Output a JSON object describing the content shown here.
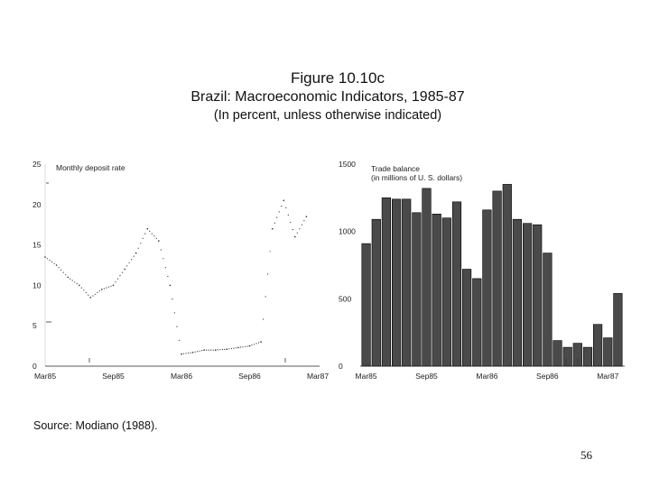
{
  "figure": {
    "title": "Figure 10.10c",
    "subtitle": "Brazil: Macroeconomic Indicators, 1985-87",
    "units_note": "(In percent, unless otherwise indicated)",
    "source": "Source: Modiano (1988).",
    "page_number": "56"
  },
  "colors": {
    "bar_fill": "#4a4a4a",
    "bar_stroke": "#000000",
    "line": "#333333"
  },
  "chart_data": [
    {
      "type": "line",
      "title": "Monthly deposit rate",
      "x_tick_labels": [
        "Mar85",
        "Sep85",
        "Mar86",
        "Sep86",
        "Mar87"
      ],
      "y_tick_labels": [
        "0",
        "5",
        "10",
        "15",
        "20",
        "25"
      ],
      "ylim": [
        0,
        25
      ],
      "months": 25,
      "values": [
        13.5,
        12.5,
        11,
        10,
        8.5,
        9.5,
        10,
        12,
        14,
        17,
        15.5,
        10,
        1.5,
        1.7,
        2,
        2,
        2.1,
        2.3,
        2.5,
        3,
        17,
        20.5,
        16,
        18.5
      ]
    },
    {
      "type": "bar",
      "title": "Trade balance",
      "subtitle": "(in millions of U. S. dollars)",
      "x_tick_labels": [
        "Mar85",
        "Sep85",
        "Mar86",
        "Sep86",
        "Mar87"
      ],
      "y_tick_labels": [
        "0",
        "500",
        "1000",
        "1500"
      ],
      "ylim": [
        0,
        1500
      ],
      "values": [
        910,
        1090,
        1250,
        1240,
        1240,
        1140,
        1320,
        1130,
        1100,
        1220,
        720,
        650,
        1160,
        1300,
        1350,
        1090,
        1060,
        1050,
        840,
        190,
        140,
        170,
        140,
        310,
        210,
        540
      ]
    }
  ]
}
